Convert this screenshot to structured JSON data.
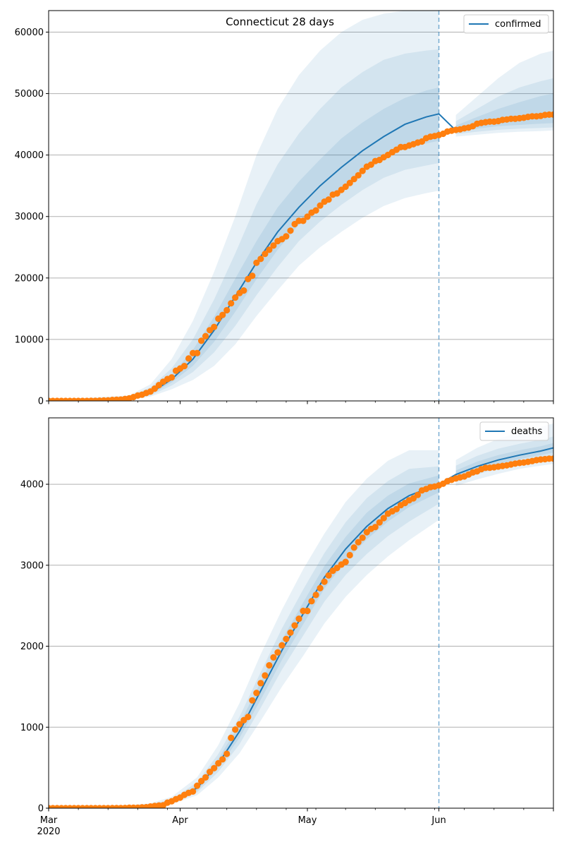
{
  "title": "Connecticut 28 days",
  "colors": {
    "model_line": "#1f77b4",
    "observed_points": "#ff7f0e",
    "band_fill": "#1f77b4",
    "grid": "#b0b0b0",
    "forecast_divider": "#1f77b4"
  },
  "x_axis": {
    "ticks": [
      {
        "date": "2020-03-01",
        "label": "Mar",
        "sublabel": "2020"
      },
      {
        "date": "2020-04-01",
        "label": "Apr"
      },
      {
        "date": "2020-05-01",
        "label": "May"
      },
      {
        "date": "2020-06-01",
        "label": "Jun"
      }
    ],
    "xlim": [
      "2020-03-01",
      "2020-06-28"
    ]
  },
  "chart_data": [
    {
      "type": "line",
      "legend": "confirmed",
      "legend_position": "upper right",
      "grid": true,
      "ylim": [
        0,
        63500
      ],
      "yticks": [
        0,
        10000,
        20000,
        30000,
        40000,
        50000,
        60000
      ],
      "forecast_start": "2020-06-01",
      "model": {
        "dates": [
          "2020-03-01",
          "2020-03-10",
          "2020-03-20",
          "2020-03-25",
          "2020-03-30",
          "2020-04-04",
          "2020-04-09",
          "2020-04-14",
          "2020-04-19",
          "2020-04-24",
          "2020-04-29",
          "2020-05-04",
          "2020-05-09",
          "2020-05-14",
          "2020-05-19",
          "2020-05-24",
          "2020-05-29",
          "2020-06-01",
          "2020-06-05",
          "2020-06-10",
          "2020-06-15",
          "2020-06-20",
          "2020-06-25",
          "2020-06-28"
        ],
        "median": [
          100,
          150,
          400,
          1300,
          3500,
          6800,
          11500,
          17000,
          22500,
          27500,
          31500,
          35000,
          38000,
          40700,
          43000,
          45000,
          46200,
          46700,
          44000,
          45000,
          45600,
          46000,
          46300,
          46500
        ],
        "bands": [
          {
            "lower": [
              0,
              0,
              200,
              700,
              1900,
              3400,
              5700,
              9200,
              13800,
              18000,
              22000,
              25000,
              27500,
              29800,
              31700,
              33000,
              33800,
              34200,
              43000,
              43300,
              43600,
              43800,
              43900,
              44000
            ],
            "upper": [
              300,
              500,
              900,
              2700,
              6800,
              13000,
              21000,
              30000,
              40000,
              47500,
              53000,
              57000,
              60000,
              62000,
              63000,
              63500,
              63500,
              63500,
              46500,
              49500,
              52500,
              55000,
              56500,
              57000
            ]
          },
          {
            "lower": [
              0,
              50,
              300,
              900,
              2500,
              4700,
              7900,
              12200,
              17200,
              21800,
              26000,
              29200,
              31900,
              34300,
              36300,
              37600,
              38300,
              38700,
              43400,
              43800,
              44100,
              44300,
              44400,
              44500
            ],
            "upper": [
              200,
              300,
              700,
              2200,
              5300,
              10000,
              16500,
              24000,
              32000,
              38500,
              43500,
              47500,
              51000,
              53500,
              55500,
              56500,
              57000,
              57200,
              45500,
              47500,
              49500,
              51000,
              52000,
              52500
            ]
          },
          {
            "lower": [
              50,
              100,
              350,
              1050,
              3000,
              5700,
              9600,
              14500,
              19800,
              24600,
              28700,
              32000,
              34800,
              37400,
              39500,
              41000,
              41900,
              42300,
              43700,
              44300,
              44700,
              44900,
              45100,
              45200
            ],
            "upper": [
              150,
              200,
              550,
              1700,
              4300,
              8300,
              13700,
              19900,
              26000,
              31500,
              35700,
              39300,
              42700,
              45300,
              47500,
              49300,
              50500,
              51000,
              44800,
              46200,
              47500,
              48600,
              49600,
              50000
            ]
          }
        ]
      },
      "observed": {
        "start": "2020-03-01",
        "values": [
          0,
          0,
          0,
          0,
          0,
          0,
          0,
          2,
          3,
          5,
          11,
          22,
          41,
          68,
          96,
          159,
          194,
          223,
          327,
          415,
          618,
          875,
          1012,
          1291,
          1524,
          1993,
          2571,
          3128,
          3557,
          3824,
          4914,
          5276,
          5675,
          6906,
          7781,
          7781,
          9784,
          10538,
          11510,
          12035,
          13381,
          13989,
          14755,
          15884,
          16809,
          17550,
          17962,
          19815,
          20360,
          22469,
          23100,
          23921,
          24582,
          25269,
          25997,
          26312,
          26767,
          27700,
          28764,
          29287,
          29287,
          29973,
          30621,
          30995,
          31784,
          32411,
          32766,
          33554,
          33765,
          34333,
          34855,
          35464,
          36085,
          36703,
          37419,
          38116,
          38430,
          39017,
          39208,
          39640,
          40022,
          40468,
          40873,
          41288,
          41303,
          41559,
          41762,
          42022,
          42201,
          42740,
          42979,
          43091,
          43239,
          43460,
          43819,
          43968,
          44092,
          44179,
          44347,
          44461,
          44689,
          45088,
          45235,
          45349,
          45440,
          45429,
          45524,
          45715,
          45782,
          45899,
          45899,
          45994,
          46059,
          46206,
          46303,
          46303,
          46362,
          46514,
          46572,
          46572
        ]
      }
    },
    {
      "type": "line",
      "legend": "deaths",
      "legend_position": "upper right",
      "grid": true,
      "ylim": [
        0,
        4820
      ],
      "yticks": [
        0,
        1000,
        2000,
        3000,
        4000
      ],
      "forecast_start": "2020-06-01",
      "model": {
        "dates": [
          "2020-03-01",
          "2020-03-15",
          "2020-03-25",
          "2020-03-30",
          "2020-04-05",
          "2020-04-10",
          "2020-04-15",
          "2020-04-20",
          "2020-04-25",
          "2020-04-30",
          "2020-05-05",
          "2020-05-10",
          "2020-05-15",
          "2020-05-20",
          "2020-05-25",
          "2020-06-01",
          "2020-06-05",
          "2020-06-10",
          "2020-06-15",
          "2020-06-20",
          "2020-06-25",
          "2020-06-28"
        ],
        "median": [
          0,
          5,
          30,
          80,
          250,
          550,
          950,
          1450,
          1950,
          2400,
          2850,
          3200,
          3480,
          3700,
          3860,
          4000,
          4120,
          4220,
          4300,
          4360,
          4410,
          4450
        ],
        "bands": [
          {
            "lower": [
              0,
              0,
              15,
              50,
              160,
              380,
              680,
              1080,
              1500,
              1880,
              2280,
              2610,
              2880,
              3110,
              3310,
              3560,
              3980,
              4060,
              4130,
              4190,
              4230,
              4250
            ],
            "upper": [
              10,
              20,
              60,
              140,
              380,
              780,
              1300,
              1900,
              2450,
              2950,
              3390,
              3780,
              4070,
              4290,
              4420,
              4420,
              4300,
              4450,
              4560,
              4640,
              4710,
              4750
            ]
          },
          {
            "lower": [
              0,
              0,
              20,
              60,
              195,
              450,
              790,
              1240,
              1710,
              2130,
              2550,
              2880,
              3140,
              3360,
              3540,
              3760,
              4030,
              4120,
              4200,
              4260,
              4300,
              4320
            ],
            "upper": [
              5,
              15,
              45,
              110,
              320,
              670,
              1130,
              1680,
              2220,
              2700,
              3150,
              3530,
              3830,
              4040,
              4190,
              4220,
              4230,
              4350,
              4440,
              4500,
              4550,
              4590
            ]
          },
          {
            "lower": [
              0,
              2,
              25,
              70,
              220,
              500,
              870,
              1340,
              1830,
              2270,
              2710,
              3050,
              3320,
              3540,
              3720,
              3900,
              4070,
              4170,
              4250,
              4310,
              4360,
              4390
            ],
            "upper": [
              3,
              10,
              38,
              95,
              285,
              610,
              1040,
              1560,
              2080,
              2540,
              2990,
              3350,
              3650,
              3860,
              4010,
              4110,
              4170,
              4280,
              4360,
              4420,
              4470,
              4510
            ]
          }
        ]
      },
      "observed": {
        "start": "2020-03-01",
        "values": [
          0,
          0,
          0,
          0,
          0,
          0,
          0,
          0,
          0,
          0,
          0,
          0,
          0,
          0,
          0,
          1,
          2,
          2,
          3,
          5,
          5,
          6,
          10,
          12,
          21,
          27,
          33,
          36,
          69,
          85,
          112,
          131,
          165,
          189,
          206,
          277,
          335,
          380,
          448,
          494,
          554,
          603,
          671,
          868,
          971,
          1036,
          1086,
          1127,
          1331,
          1423,
          1544,
          1639,
          1764,
          1862,
          1924,
          2012,
          2089,
          2168,
          2257,
          2339,
          2436,
          2436,
          2556,
          2633,
          2718,
          2797,
          2874,
          2932,
          2967,
          3008,
          3041,
          3125,
          3219,
          3285,
          3339,
          3408,
          3449,
          3472,
          3529,
          3582,
          3637,
          3666,
          3693,
          3742,
          3769,
          3802,
          3826,
          3868,
          3924,
          3941,
          3964,
          3972,
          3986,
          4007,
          4038,
          4055,
          4071,
          4084,
          4097,
          4120,
          4146,
          4159,
          4186,
          4204,
          4204,
          4210,
          4219,
          4226,
          4233,
          4245,
          4255,
          4263,
          4268,
          4277,
          4287,
          4298,
          4306,
          4310,
          4316,
          4316
        ]
      }
    }
  ]
}
